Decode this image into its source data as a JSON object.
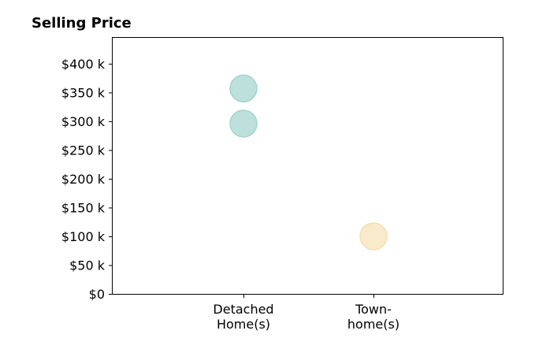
{
  "chart_data": {
    "type": "scatter",
    "title": "Selling Price",
    "xlabel": "",
    "ylabel": "",
    "categories": [
      [
        "Detached",
        "Home(s)"
      ],
      [
        "Town-",
        "home(s)"
      ]
    ],
    "ylim": [
      0,
      445000
    ],
    "yticks": [
      0,
      50000,
      100000,
      150000,
      200000,
      250000,
      300000,
      350000,
      400000
    ],
    "ytick_labels": [
      "$0",
      "$50 k",
      "$100 k",
      "$150 k",
      "$200 k",
      "$250 k",
      "$300 k",
      "$350 k",
      "$400 k"
    ],
    "grid": false,
    "points": [
      {
        "category_index": 0,
        "value": 357000
      },
      {
        "category_index": 0,
        "value": 296000
      },
      {
        "category_index": 1,
        "value": 100000
      }
    ],
    "colors": {
      "category_fills": [
        "#bde0dc",
        "#f8eacb"
      ],
      "category_strokes": [
        "#a3d4ce",
        "#f2dfb4"
      ]
    }
  }
}
